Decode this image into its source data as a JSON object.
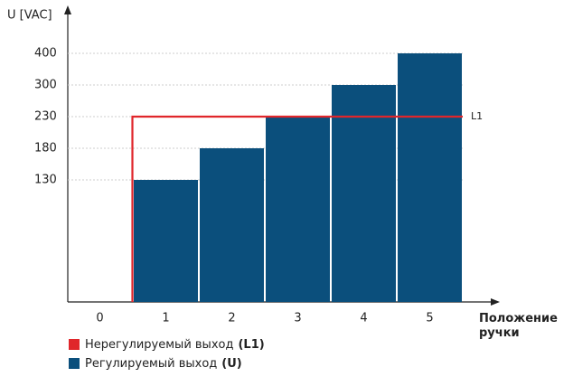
{
  "chart_data": {
    "type": "bar",
    "y_label": "U [VAC]",
    "x_label": "Положение ручки",
    "categories": [
      "0",
      "1",
      "2",
      "3",
      "4",
      "5"
    ],
    "values": [
      null,
      130,
      180,
      230,
      300,
      400
    ],
    "color": "#0b4f7c",
    "ylim": [
      0,
      400
    ],
    "yticks": [
      130,
      180,
      230,
      300,
      400
    ],
    "grid": true,
    "reference_line": {
      "name": "L1",
      "value": 230,
      "color": "#e0262b"
    },
    "legend": [
      {
        "label": "Нерегулируемый выход",
        "label_bold": "(L1)",
        "color": "#e0262b"
      },
      {
        "label": "Регулируемый выход",
        "label_bold": "(U)",
        "color": "#0b4f7c"
      }
    ]
  }
}
